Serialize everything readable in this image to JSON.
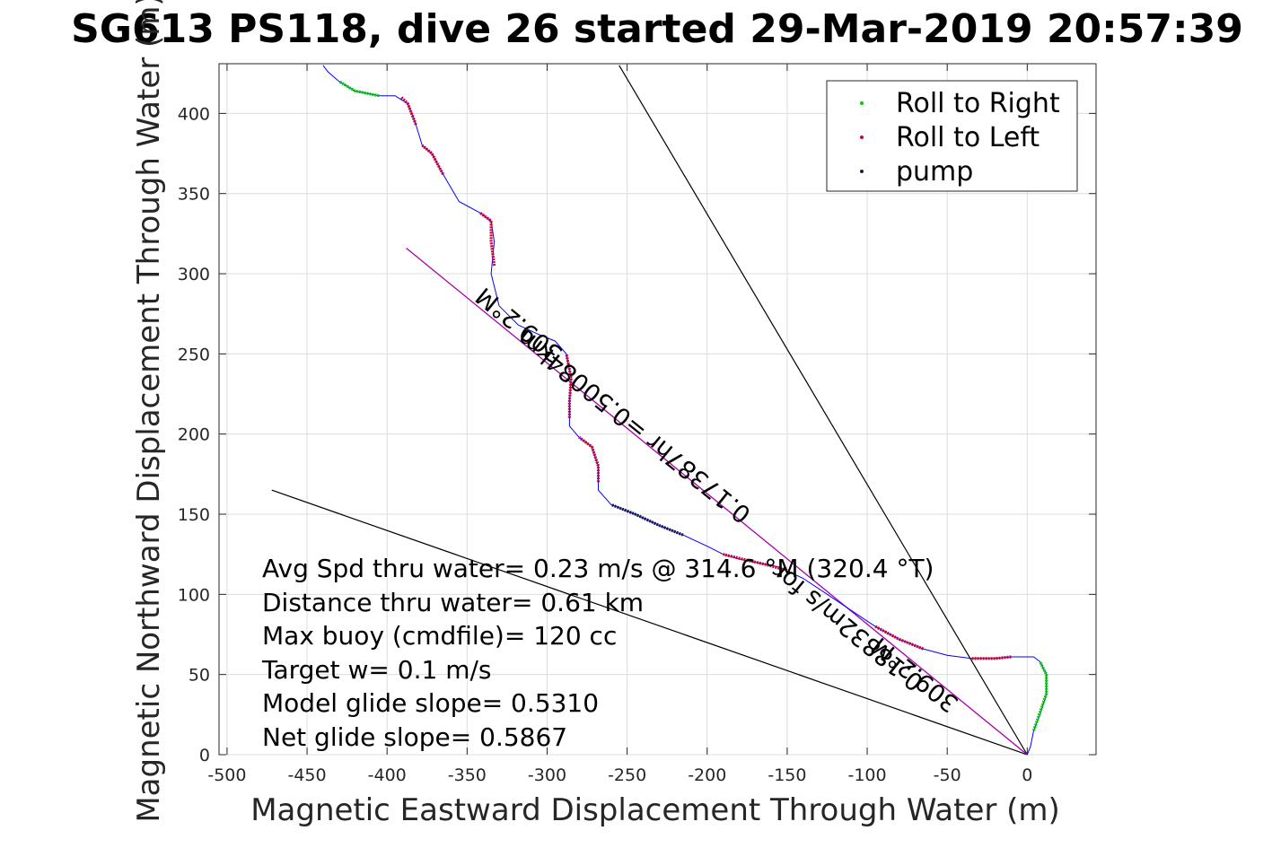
{
  "chart_data": {
    "type": "line",
    "title": "SG613 PS118, dive 26 started 29-Mar-2019 20:57:39",
    "xlabel": "Magnetic Eastward Displacement Through Water (m)",
    "ylabel": "Magnetic Northward Displacement Through Water (m)",
    "xlim": [
      -505,
      43
    ],
    "ylim": [
      0,
      431
    ],
    "x_ticks": [
      -500,
      -450,
      -400,
      -350,
      -300,
      -250,
      -200,
      -150,
      -100,
      -50,
      0
    ],
    "y_ticks": [
      0,
      50,
      100,
      150,
      200,
      250,
      300,
      350,
      400
    ],
    "grid": true,
    "legend_position": "top-right",
    "legend": [
      "Roll to Right",
      "Roll to Left",
      "pump"
    ],
    "colors": {
      "track": "#0000ff",
      "roll_right": "#00cc00",
      "roll_left": "#cc0033",
      "pump": "#1a1a4d",
      "avg_line": "#aa00aa",
      "ref_line": "#000000",
      "grid": "#dcdcdc"
    },
    "track": [
      [
        0,
        0
      ],
      [
        2,
        5
      ],
      [
        4,
        15
      ],
      [
        8,
        25
      ],
      [
        12,
        38
      ],
      [
        12,
        50
      ],
      [
        8,
        58
      ],
      [
        4,
        61
      ],
      [
        -10,
        61
      ],
      [
        -20,
        60
      ],
      [
        -35,
        60
      ],
      [
        -50,
        62
      ],
      [
        -65,
        66
      ],
      [
        -80,
        72
      ],
      [
        -95,
        80
      ],
      [
        -110,
        90
      ],
      [
        -125,
        100
      ],
      [
        -140,
        110
      ],
      [
        -155,
        117
      ],
      [
        -170,
        120
      ],
      [
        -180,
        122
      ],
      [
        -190,
        125
      ],
      [
        -200,
        130
      ],
      [
        -215,
        137
      ],
      [
        -230,
        143
      ],
      [
        -245,
        150
      ],
      [
        -260,
        156
      ],
      [
        -268,
        165
      ],
      [
        -268,
        180
      ],
      [
        -272,
        192
      ],
      [
        -280,
        198
      ],
      [
        -286,
        205
      ],
      [
        -286,
        220
      ],
      [
        -285,
        235
      ],
      [
        -288,
        250
      ],
      [
        -295,
        258
      ],
      [
        -305,
        262
      ],
      [
        -318,
        268
      ],
      [
        -330,
        280
      ],
      [
        -335,
        300
      ],
      [
        -333,
        320
      ],
      [
        -335,
        333
      ],
      [
        -342,
        338
      ],
      [
        -355,
        345
      ],
      [
        -365,
        362
      ],
      [
        -372,
        375
      ],
      [
        -378,
        380
      ],
      [
        -382,
        393
      ],
      [
        -387,
        406
      ],
      [
        -395,
        411
      ],
      [
        -405,
        411
      ],
      [
        -420,
        414
      ],
      [
        -430,
        420
      ],
      [
        -437,
        426
      ],
      [
        -440,
        430
      ]
    ],
    "roll_right_segments": [
      [
        [
          4,
          15
        ],
        [
          12,
          38
        ],
        [
          12,
          50
        ],
        [
          8,
          58
        ]
      ],
      [
        [
          -405,
          411
        ],
        [
          -420,
          414
        ],
        [
          -430,
          420
        ]
      ]
    ],
    "roll_left_segments": [
      [
        [
          -10,
          61
        ],
        [
          -20,
          60
        ],
        [
          -35,
          60
        ]
      ],
      [
        [
          -65,
          66
        ],
        [
          -80,
          72
        ],
        [
          -95,
          80
        ]
      ],
      [
        [
          -150,
          115
        ],
        [
          -165,
          119
        ],
        [
          -178,
          122
        ],
        [
          -190,
          125
        ]
      ],
      [
        [
          -268,
          170
        ],
        [
          -268,
          180
        ],
        [
          -272,
          192
        ],
        [
          -280,
          198
        ]
      ],
      [
        [
          -286,
          210
        ],
        [
          -286,
          220
        ],
        [
          -285,
          235
        ],
        [
          -288,
          250
        ]
      ],
      [
        [
          -333,
          305
        ],
        [
          -335,
          320
        ],
        [
          -335,
          333
        ],
        [
          -342,
          338
        ]
      ],
      [
        [
          -365,
          362
        ],
        [
          -372,
          375
        ],
        [
          -378,
          380
        ]
      ],
      [
        [
          -382,
          393
        ],
        [
          -387,
          406
        ],
        [
          -391,
          410
        ]
      ]
    ],
    "pump_segments": [
      [
        [
          -215,
          137
        ],
        [
          -230,
          143
        ],
        [
          -245,
          150
        ],
        [
          -260,
          156
        ]
      ]
    ],
    "avg_line": [
      [
        0,
        0
      ],
      [
        -388,
        316
      ]
    ],
    "ref_lines": [
      [
        [
          0,
          0
        ],
        [
          -255,
          430
        ]
      ],
      [
        [
          0,
          0
        ],
        [
          -472,
          165
        ]
      ]
    ],
    "annotations": [
      "Avg Spd thru water=  0.23 m/s @ 314.6 °M (320.4 °T)",
      "Distance thru water=  0.61 km",
      "Max buoy (cmdfile)= 120 cc",
      "Target w= 0.1 m/s",
      "Model glide slope= 0.5310",
      "Net glide slope= 0.5867"
    ],
    "line_labels": [
      {
        "text": "309.2°M",
        "angle": 219
      },
      {
        "text": "0.17387hr =0.50084km",
        "angle": 219
      },
      {
        "text": "0.18832m/s for",
        "angle": 219
      },
      {
        "text": "309.2°M",
        "angle": 219
      }
    ]
  }
}
